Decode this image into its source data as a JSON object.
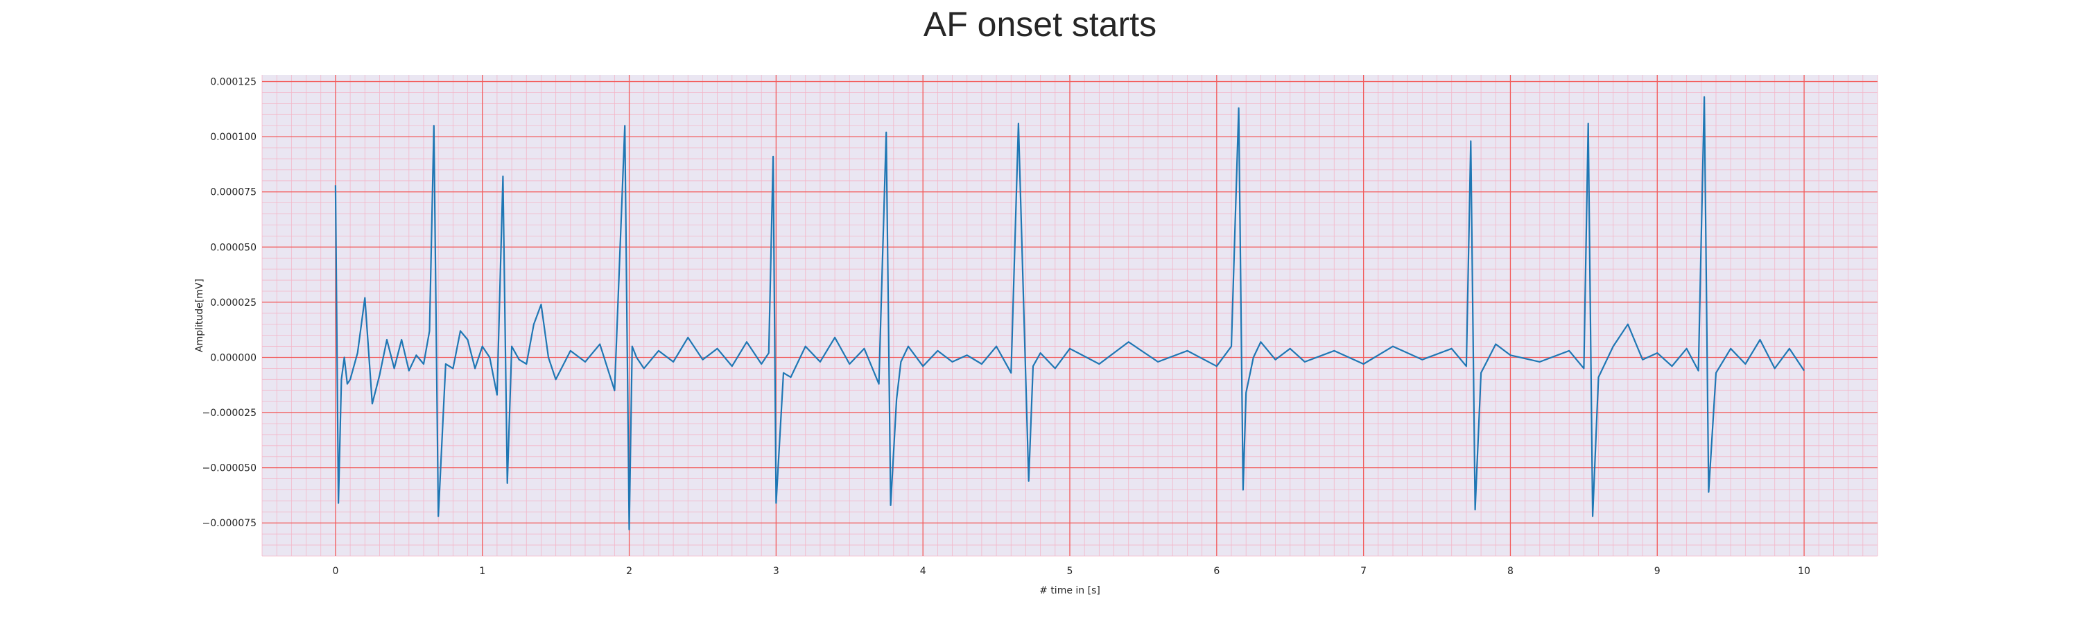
{
  "chart_data": {
    "type": "line",
    "title": "AF onset starts",
    "xlabel": "# time in [s]",
    "ylabel": "Amplitude[mV]",
    "xlim": [
      -0.5,
      10.5
    ],
    "ylim": [
      -9e-05,
      0.000128
    ],
    "xticks": [
      0,
      1,
      2,
      3,
      4,
      5,
      6,
      7,
      8,
      9,
      10
    ],
    "xtick_labels": [
      "0",
      "1",
      "2",
      "3",
      "4",
      "5",
      "6",
      "7",
      "8",
      "9",
      "10"
    ],
    "yticks": [
      -7.5e-05,
      -5e-05,
      -2.5e-05,
      0,
      2.5e-05,
      5e-05,
      7.5e-05,
      0.0001,
      0.000125
    ],
    "ytick_labels": [
      "−0.000075",
      "−0.000050",
      "−0.000025",
      "0.000000",
      "0.000025",
      "0.000050",
      "0.000075",
      "0.000100",
      "0.000125"
    ],
    "grid": true,
    "minor_grid": true,
    "colors": {
      "line": "#1f77b4",
      "major_grid": "#f25c5c",
      "minor_grid": "#f3b6c8",
      "background": "#eae6f2"
    },
    "series": [
      {
        "x": [
          0,
          0.02,
          0.04,
          0.06,
          0.08,
          0.1,
          0.15,
          0.2,
          0.25,
          0.3,
          0.35,
          0.4,
          0.45,
          0.5,
          0.55,
          0.6,
          0.64,
          0.67,
          0.7,
          0.75,
          0.8,
          0.85,
          0.9,
          0.95,
          1.0,
          1.05,
          1.1,
          1.14,
          1.17,
          1.2,
          1.25,
          1.3,
          1.35,
          1.4,
          1.45,
          1.5,
          1.6,
          1.7,
          1.8,
          1.9,
          1.97,
          2.0,
          2.02,
          2.05,
          2.1,
          2.2,
          2.3,
          2.4,
          2.5,
          2.6,
          2.7,
          2.8,
          2.9,
          2.95,
          2.98,
          3.0,
          3.05,
          3.1,
          3.2,
          3.3,
          3.4,
          3.5,
          3.6,
          3.7,
          3.75,
          3.78,
          3.82,
          3.85,
          3.9,
          4.0,
          4.1,
          4.2,
          4.3,
          4.4,
          4.5,
          4.6,
          4.65,
          4.72,
          4.75,
          4.8,
          4.9,
          5.0,
          5.2,
          5.4,
          5.6,
          5.8,
          6.0,
          6.1,
          6.15,
          6.18,
          6.2,
          6.25,
          6.3,
          6.4,
          6.5,
          6.6,
          6.8,
          7.0,
          7.2,
          7.4,
          7.6,
          7.7,
          7.73,
          7.76,
          7.8,
          7.9,
          8.0,
          8.2,
          8.4,
          8.5,
          8.53,
          8.56,
          8.6,
          8.7,
          8.8,
          8.9,
          9.0,
          9.1,
          9.2,
          9.28,
          9.32,
          9.35,
          9.4,
          9.5,
          9.6,
          9.7,
          9.8,
          9.9,
          10.0
        ],
        "y": [
          7.8e-05,
          -6.6e-05,
          -1e-05,
          0,
          -1.2e-05,
          -1e-05,
          2e-06,
          2.7e-05,
          -2.1e-05,
          -8e-06,
          8e-06,
          -5e-06,
          8e-06,
          -6e-06,
          1e-06,
          -3e-06,
          1.2e-05,
          0.000105,
          -7.2e-05,
          -3e-06,
          -5e-06,
          1.2e-05,
          8e-06,
          -5e-06,
          5e-06,
          0,
          -1.7e-05,
          8.2e-05,
          -5.7e-05,
          5e-06,
          -1e-06,
          -3e-06,
          1.5e-05,
          2.4e-05,
          0,
          -1e-05,
          3e-06,
          -2e-06,
          6e-06,
          -1.5e-05,
          0.000105,
          -7.8e-05,
          5e-06,
          0,
          -5e-06,
          3e-06,
          -2e-06,
          9e-06,
          -1e-06,
          4e-06,
          -4e-06,
          7e-06,
          -3e-06,
          2e-06,
          9.1e-05,
          -6.6e-05,
          -7e-06,
          -9e-06,
          5e-06,
          -2e-06,
          9e-06,
          -3e-06,
          4e-06,
          -1.2e-05,
          0.000102,
          -6.7e-05,
          -1.9e-05,
          -2e-06,
          5e-06,
          -4e-06,
          3e-06,
          -2e-06,
          1e-06,
          -3e-06,
          5e-06,
          -7e-06,
          0.000106,
          -5.6e-05,
          -4e-06,
          2e-06,
          -5e-06,
          4e-06,
          -3e-06,
          7e-06,
          -2e-06,
          3e-06,
          -4e-06,
          5e-06,
          0.000113,
          -6e-05,
          -1.6e-05,
          0,
          7e-06,
          -1e-06,
          4e-06,
          -2e-06,
          3e-06,
          -3e-06,
          5e-06,
          -1e-06,
          4e-06,
          -4e-06,
          9.8e-05,
          -6.9e-05,
          -7e-06,
          6e-06,
          1e-06,
          -2e-06,
          3e-06,
          -5e-06,
          0.000106,
          -7.2e-05,
          -9e-06,
          5e-06,
          1.5e-05,
          -1e-06,
          2e-06,
          -4e-06,
          4e-06,
          -6e-06,
          0.000118,
          -6.1e-05,
          -7e-06,
          4e-06,
          -3e-06,
          8e-06,
          -5e-06,
          4e-06,
          -6e-06
        ]
      }
    ]
  }
}
